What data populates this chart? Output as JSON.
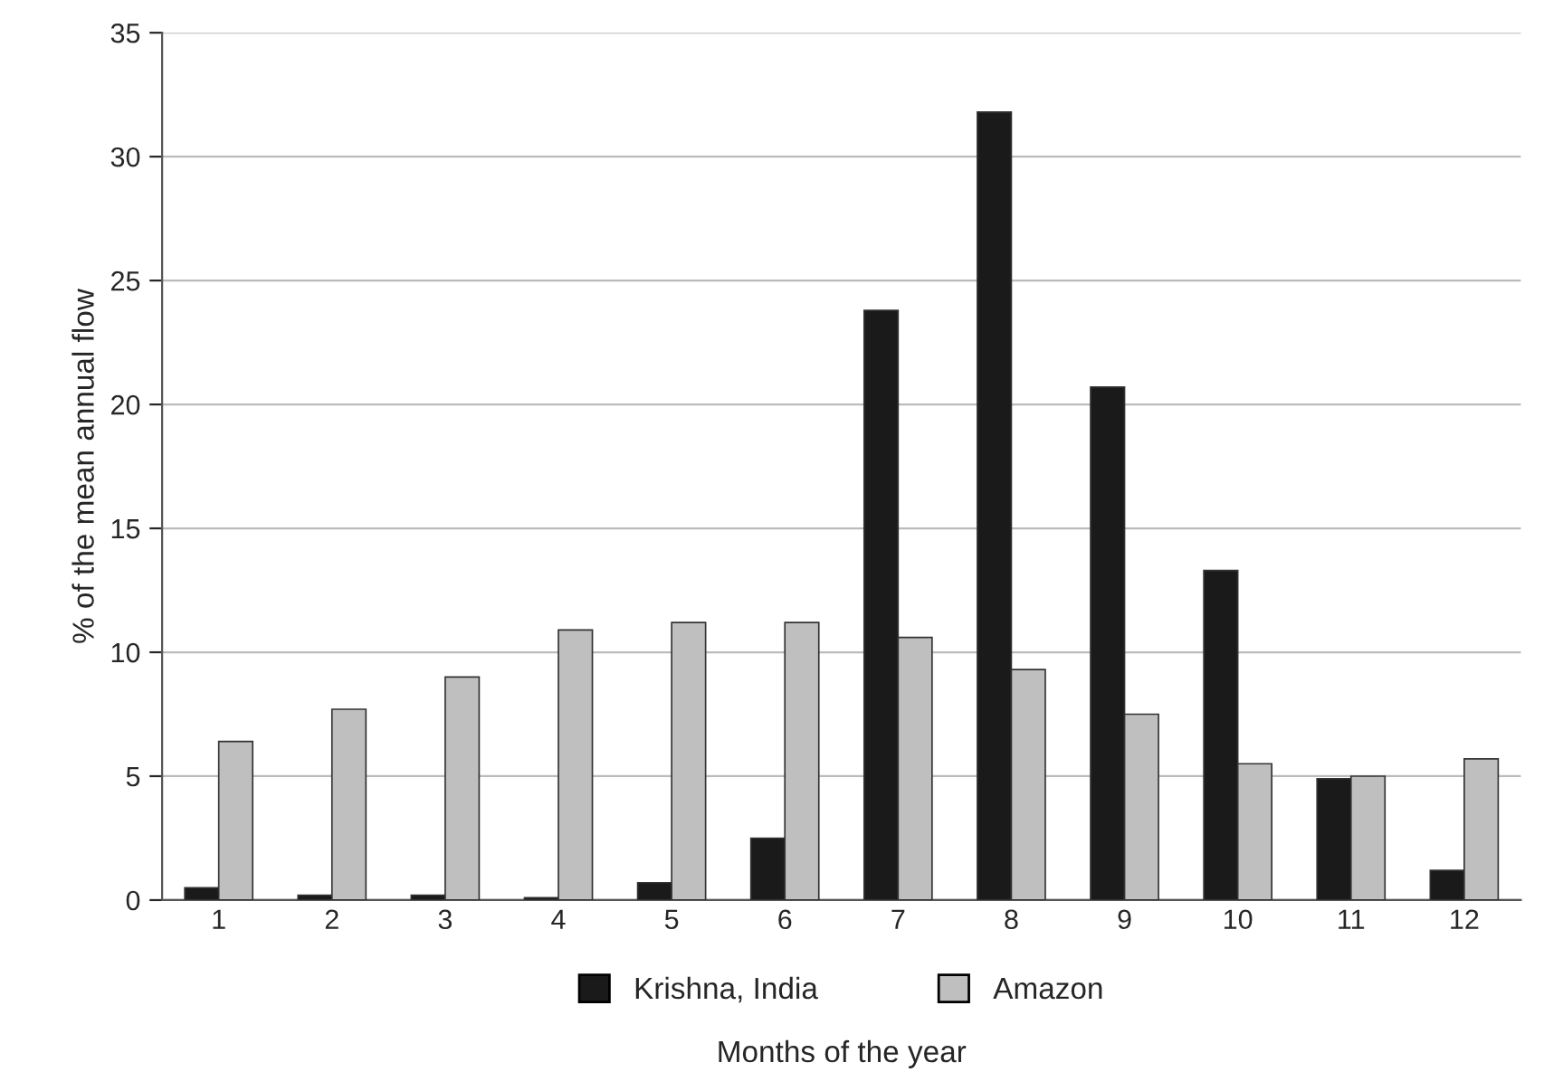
{
  "chart_data": {
    "type": "bar",
    "xlabel": "Months of the year",
    "ylabel": "% of the mean annual flow",
    "categories": [
      "1",
      "2",
      "3",
      "4",
      "5",
      "6",
      "7",
      "8",
      "9",
      "10",
      "11",
      "12"
    ],
    "series": [
      {
        "name": "Krishna, India",
        "color": "#1a1a1a",
        "values": [
          0.5,
          0.2,
          0.2,
          0.1,
          0.7,
          2.5,
          23.8,
          31.8,
          20.7,
          13.3,
          4.9,
          1.2
        ]
      },
      {
        "name": "Amazon",
        "color": "#bfbfbf",
        "values": [
          6.4,
          7.7,
          9.0,
          10.9,
          11.2,
          11.2,
          10.6,
          9.3,
          7.5,
          5.5,
          5.0,
          5.7
        ]
      }
    ],
    "ylim": [
      0,
      35
    ],
    "yticks": [
      0,
      5,
      10,
      15,
      20,
      25,
      30,
      35
    ],
    "grid": "y",
    "legend": "bottom"
  }
}
